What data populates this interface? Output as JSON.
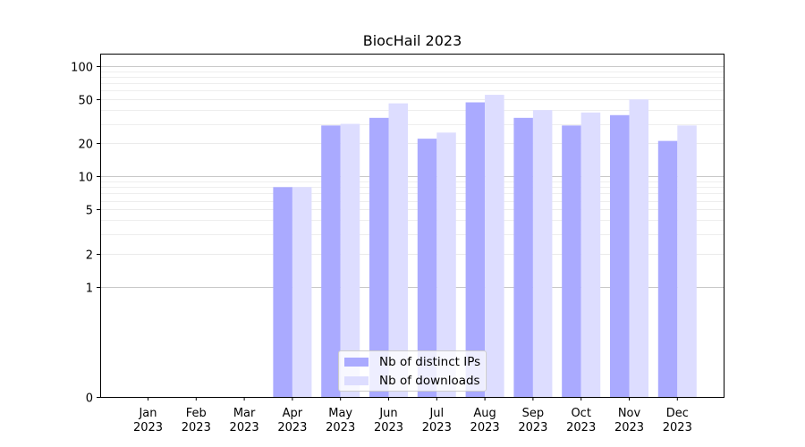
{
  "chart_data": {
    "type": "bar",
    "title": "BiocHail 2023",
    "xlabel": "",
    "ylabel": "",
    "yscale": "symlog",
    "ylim": [
      0,
      130
    ],
    "yticks": [
      0,
      1,
      2,
      5,
      10,
      20,
      50,
      100
    ],
    "ytick_labels": [
      "0",
      "1",
      "2",
      "5",
      "10",
      "20",
      "50",
      "100"
    ],
    "grid": true,
    "legend_position": "bottom-center",
    "categories": [
      "Jan\n2023",
      "Feb\n2023",
      "Mar\n2023",
      "Apr\n2023",
      "May\n2023",
      "Jun\n2023",
      "Jul\n2023",
      "Aug\n2023",
      "Sep\n2023",
      "Oct\n2023",
      "Nov\n2023",
      "Dec\n2023"
    ],
    "category_labels": [
      {
        "month": "Jan",
        "year": "2023"
      },
      {
        "month": "Feb",
        "year": "2023"
      },
      {
        "month": "Mar",
        "year": "2023"
      },
      {
        "month": "Apr",
        "year": "2023"
      },
      {
        "month": "May",
        "year": "2023"
      },
      {
        "month": "Jun",
        "year": "2023"
      },
      {
        "month": "Jul",
        "year": "2023"
      },
      {
        "month": "Aug",
        "year": "2023"
      },
      {
        "month": "Sep",
        "year": "2023"
      },
      {
        "month": "Oct",
        "year": "2023"
      },
      {
        "month": "Nov",
        "year": "2023"
      },
      {
        "month": "Dec",
        "year": "2023"
      }
    ],
    "series": [
      {
        "name": "Nb of distinct IPs",
        "color": "#aaaaff",
        "values": [
          0,
          0,
          0,
          8,
          29,
          34,
          22,
          47,
          34,
          29,
          36,
          21
        ]
      },
      {
        "name": "Nb of downloads",
        "color": "#ddddff",
        "values": [
          0,
          0,
          0,
          8,
          30,
          46,
          25,
          55,
          40,
          38,
          50,
          29
        ]
      }
    ]
  }
}
